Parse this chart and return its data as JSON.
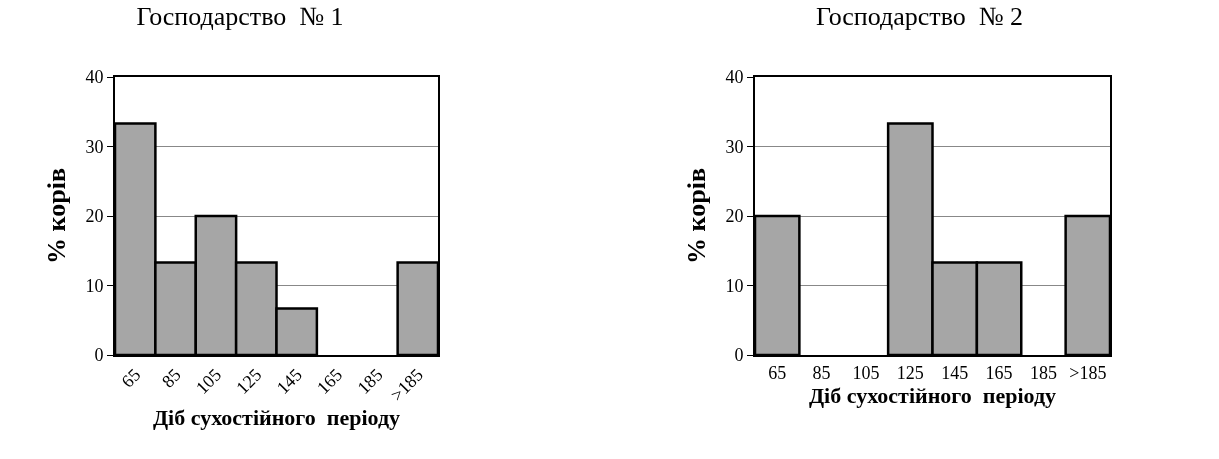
{
  "chart_data": [
    {
      "type": "bar",
      "title": "Господарство  № 1",
      "xlabel": "Діб сухостійного  періоду",
      "ylabel": "% корів",
      "categories": [
        "65",
        "85",
        "105",
        "125",
        "145",
        "165",
        "185",
        ">185"
      ],
      "values": [
        33.3,
        13.3,
        20,
        13.3,
        6.7,
        0,
        0,
        13.3
      ],
      "color": "#a6a6a6",
      "ylim": [
        0,
        40
      ],
      "yticks": [
        0,
        10,
        20,
        30,
        40
      ],
      "grid": "y"
    },
    {
      "type": "bar",
      "title": "Господарство  № 2",
      "xlabel": "Діб сухостійного  періоду",
      "ylabel": "% корів",
      "categories": [
        "65",
        "85",
        "105",
        "125",
        "145",
        "165",
        "185",
        ">185"
      ],
      "values": [
        20,
        0,
        0,
        33.3,
        13.3,
        13.3,
        0,
        20
      ],
      "color": "#a6a6a6",
      "ylim": [
        0,
        40
      ],
      "yticks": [
        0,
        10,
        20,
        30,
        40
      ],
      "grid": "y"
    }
  ]
}
